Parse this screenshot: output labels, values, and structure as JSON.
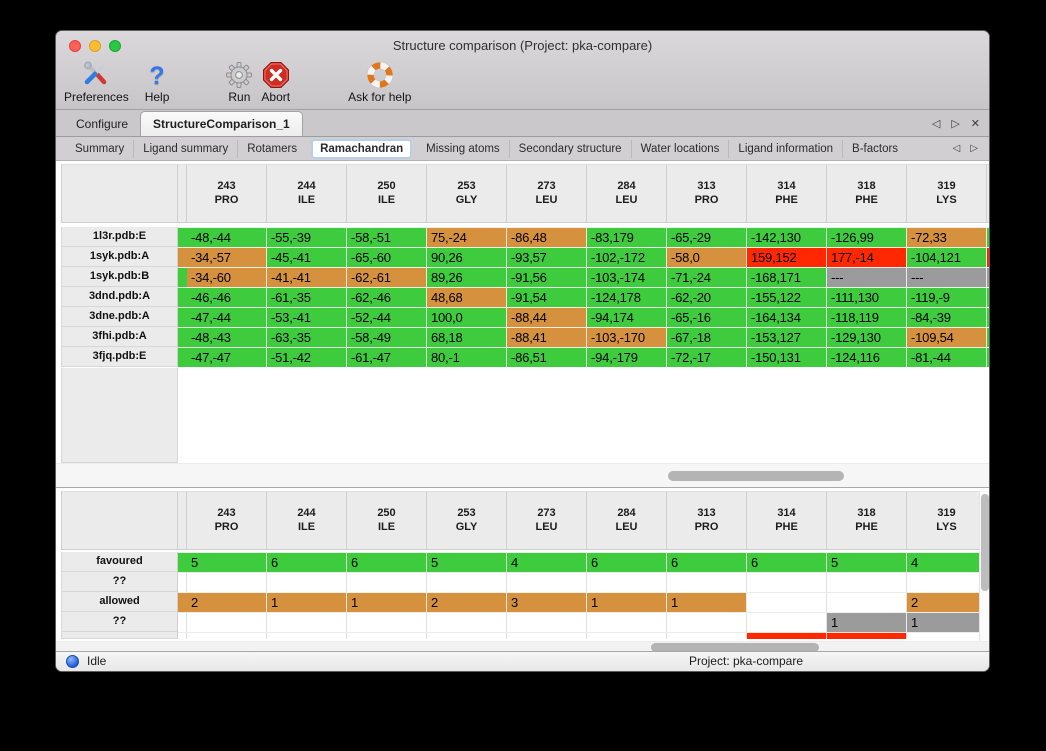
{
  "window": {
    "title": "Structure comparison (Project: pka-compare)"
  },
  "toolbar": {
    "items": [
      {
        "label": "Preferences"
      },
      {
        "label": "Help"
      },
      {
        "label": "Run"
      },
      {
        "label": "Abort"
      },
      {
        "label": "Ask for help"
      }
    ]
  },
  "tabs": {
    "items": [
      "Configure",
      "StructureComparison_1"
    ],
    "active": "StructureComparison_1",
    "controls": {
      "prev": "◁",
      "next": "▷",
      "close": "✕"
    }
  },
  "subtabs": {
    "items": [
      "Summary",
      "Ligand summary",
      "Rotamers",
      "Ramachandran",
      "Missing atoms",
      "Secondary structure",
      "Water locations",
      "Ligand information",
      "B-factors"
    ],
    "active": "Ramachandran",
    "controls": {
      "prev": "◁",
      "next": "▷"
    }
  },
  "legend_colors": {
    "favoured": "#3ecc3e",
    "allowed": "#d6913f",
    "outlier": "#ff2800",
    "missing": "#9b9b9b"
  },
  "columns": [
    {
      "num": "243",
      "res": "PRO"
    },
    {
      "num": "244",
      "res": "ILE"
    },
    {
      "num": "250",
      "res": "ILE"
    },
    {
      "num": "253",
      "res": "GLY"
    },
    {
      "num": "273",
      "res": "LEU"
    },
    {
      "num": "284",
      "res": "LEU"
    },
    {
      "num": "313",
      "res": "PRO"
    },
    {
      "num": "314",
      "res": "PHE"
    },
    {
      "num": "318",
      "res": "PHE"
    },
    {
      "num": "319",
      "res": "LYS"
    }
  ],
  "structures_table": {
    "rows": [
      {
        "label": "1l3r.pdb:E",
        "left_edge": "favoured",
        "right_edge": "favoured",
        "cells": [
          [
            "-48,-44",
            "favoured"
          ],
          [
            "-55,-39",
            "favoured"
          ],
          [
            "-58,-51",
            "favoured"
          ],
          [
            "75,-24",
            "allowed"
          ],
          [
            "-86,48",
            "allowed"
          ],
          [
            "-83,179",
            "favoured"
          ],
          [
            "-65,-29",
            "favoured"
          ],
          [
            "-142,130",
            "favoured"
          ],
          [
            "-126,99",
            "favoured"
          ],
          [
            "-72,33",
            "allowed"
          ]
        ]
      },
      {
        "label": "1syk.pdb:A",
        "left_edge": "allowed",
        "right_edge": "outlier",
        "cells": [
          [
            "-34,-57",
            "allowed"
          ],
          [
            "-45,-41",
            "favoured"
          ],
          [
            "-65,-60",
            "favoured"
          ],
          [
            "90,26",
            "favoured"
          ],
          [
            "-93,57",
            "favoured"
          ],
          [
            "-102,-172",
            "favoured"
          ],
          [
            "-58,0",
            "allowed"
          ],
          [
            "159,152",
            "outlier"
          ],
          [
            "177,-14",
            "outlier"
          ],
          [
            "-104,121",
            "favoured"
          ]
        ]
      },
      {
        "label": "1syk.pdb:B",
        "left_edge": "favoured",
        "right_edge": "missing",
        "cells": [
          [
            "-34,-60",
            "allowed"
          ],
          [
            "-41,-41",
            "allowed"
          ],
          [
            "-62,-61",
            "allowed"
          ],
          [
            "89,26",
            "favoured"
          ],
          [
            "-91,56",
            "favoured"
          ],
          [
            "-103,-174",
            "favoured"
          ],
          [
            "-71,-24",
            "favoured"
          ],
          [
            "-168,171",
            "favoured"
          ],
          [
            "---",
            "missing"
          ],
          [
            "---",
            "missing"
          ]
        ]
      },
      {
        "label": "3dnd.pdb:A",
        "left_edge": "favoured",
        "right_edge": "favoured",
        "cells": [
          [
            "-46,-46",
            "favoured"
          ],
          [
            "-61,-35",
            "favoured"
          ],
          [
            "-62,-46",
            "favoured"
          ],
          [
            "48,68",
            "allowed"
          ],
          [
            "-91,54",
            "favoured"
          ],
          [
            "-124,178",
            "favoured"
          ],
          [
            "-62,-20",
            "favoured"
          ],
          [
            "-155,122",
            "favoured"
          ],
          [
            "-111,130",
            "favoured"
          ],
          [
            "-119,-9",
            "favoured"
          ]
        ]
      },
      {
        "label": "3dne.pdb:A",
        "left_edge": "favoured",
        "right_edge": "favoured",
        "cells": [
          [
            "-47,-44",
            "favoured"
          ],
          [
            "-53,-41",
            "favoured"
          ],
          [
            "-52,-44",
            "favoured"
          ],
          [
            "100,0",
            "favoured"
          ],
          [
            "-88,44",
            "allowed"
          ],
          [
            "-94,174",
            "favoured"
          ],
          [
            "-65,-16",
            "favoured"
          ],
          [
            "-164,134",
            "favoured"
          ],
          [
            "-118,119",
            "favoured"
          ],
          [
            "-84,-39",
            "favoured"
          ]
        ]
      },
      {
        "label": "3fhi.pdb:A",
        "left_edge": "favoured",
        "right_edge": "favoured",
        "cells": [
          [
            "-48,-43",
            "favoured"
          ],
          [
            "-63,-35",
            "favoured"
          ],
          [
            "-58,-49",
            "favoured"
          ],
          [
            "68,18",
            "favoured"
          ],
          [
            "-88,41",
            "allowed"
          ],
          [
            "-103,-170",
            "allowed"
          ],
          [
            "-67,-18",
            "favoured"
          ],
          [
            "-153,127",
            "favoured"
          ],
          [
            "-129,130",
            "favoured"
          ],
          [
            "-109,54",
            "allowed"
          ]
        ]
      },
      {
        "label": "3fjq.pdb:E",
        "left_edge": "favoured",
        "right_edge": "favoured",
        "cells": [
          [
            "-47,-47",
            "favoured"
          ],
          [
            "-51,-42",
            "favoured"
          ],
          [
            "-61,-47",
            "favoured"
          ],
          [
            "80,-1",
            "favoured"
          ],
          [
            "-86,51",
            "favoured"
          ],
          [
            "-94,-179",
            "favoured"
          ],
          [
            "-72,-17",
            "favoured"
          ],
          [
            "-150,131",
            "favoured"
          ],
          [
            "-124,116",
            "favoured"
          ],
          [
            "-81,-44",
            "favoured"
          ]
        ]
      }
    ]
  },
  "counts_table": {
    "rows": [
      {
        "label": "favoured",
        "left_edge": "favoured",
        "cells": [
          [
            "5",
            "favoured"
          ],
          [
            "6",
            "favoured"
          ],
          [
            "6",
            "favoured"
          ],
          [
            "5",
            "favoured"
          ],
          [
            "4",
            "favoured"
          ],
          [
            "6",
            "favoured"
          ],
          [
            "6",
            "favoured"
          ],
          [
            "6",
            "favoured"
          ],
          [
            "5",
            "favoured"
          ],
          [
            "4",
            "favoured"
          ]
        ]
      },
      {
        "label": "??",
        "left_edge": "empty",
        "cells": [
          [
            "",
            "empty"
          ],
          [
            "",
            "empty"
          ],
          [
            "",
            "empty"
          ],
          [
            "",
            "empty"
          ],
          [
            "",
            "empty"
          ],
          [
            "",
            "empty"
          ],
          [
            "",
            "empty"
          ],
          [
            "",
            "empty"
          ],
          [
            "",
            "empty"
          ],
          [
            "",
            "empty"
          ]
        ]
      },
      {
        "label": "allowed",
        "left_edge": "allowed",
        "cells": [
          [
            "2",
            "allowed"
          ],
          [
            "1",
            "allowed"
          ],
          [
            "1",
            "allowed"
          ],
          [
            "2",
            "allowed"
          ],
          [
            "3",
            "allowed"
          ],
          [
            "1",
            "allowed"
          ],
          [
            "1",
            "allowed"
          ],
          [
            "",
            "empty"
          ],
          [
            "",
            "empty"
          ],
          [
            "2",
            "allowed"
          ]
        ]
      },
      {
        "label": "??",
        "left_edge": "empty",
        "cells": [
          [
            "",
            "empty"
          ],
          [
            "",
            "empty"
          ],
          [
            "",
            "empty"
          ],
          [
            "",
            "empty"
          ],
          [
            "",
            "empty"
          ],
          [
            "",
            "empty"
          ],
          [
            "",
            "empty"
          ],
          [
            "",
            "empty"
          ],
          [
            "1",
            "missing"
          ],
          [
            "1",
            "missing"
          ]
        ]
      },
      {
        "label": "",
        "left_edge": "empty",
        "partial": true,
        "cells": [
          [
            "",
            "empty"
          ],
          [
            "",
            "empty"
          ],
          [
            "",
            "empty"
          ],
          [
            "",
            "empty"
          ],
          [
            "",
            "empty"
          ],
          [
            "",
            "empty"
          ],
          [
            "",
            "empty"
          ],
          [
            "",
            "outlier"
          ],
          [
            "",
            "outlier"
          ],
          [
            "",
            "empty"
          ]
        ]
      }
    ]
  },
  "statusbar": {
    "status": "Idle",
    "project": "Project: pka-compare"
  }
}
